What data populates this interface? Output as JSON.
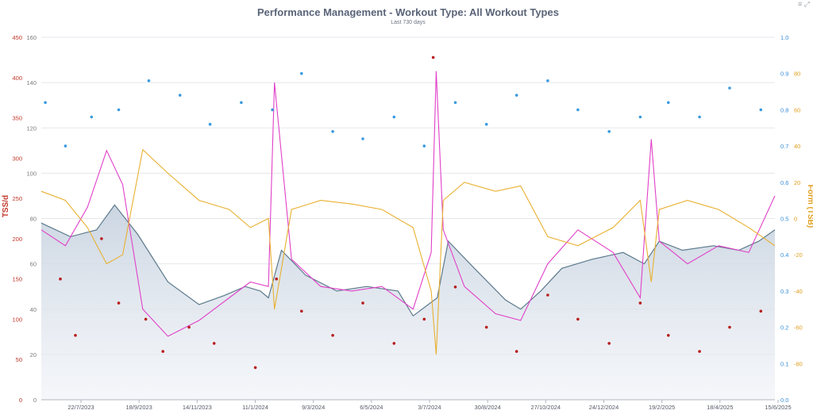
{
  "chart_data": {
    "type": "line",
    "title": "Performance Management - Workout Type: All Workout Types",
    "subtitle": "Last 730 days",
    "x_ticks": [
      "22/7/2023",
      "18/9/2023",
      "14/11/2023",
      "11/1/2024",
      "9/3/2024",
      "6/5/2024",
      "3/7/2024",
      "30/8/2024",
      "27/10/2024",
      "24/12/2024",
      "19/2/2025",
      "18/4/2025",
      "15/6/2025"
    ],
    "x_range": [
      "2023-06-16",
      "2025-06-15"
    ],
    "axes": {
      "tss": {
        "title": "TSS/d",
        "ticks": [
          "0",
          "50",
          "100",
          "150",
          "200",
          "250",
          "300",
          "350",
          "400",
          "450"
        ],
        "range": [
          0,
          450
        ],
        "position": "far-left"
      },
      "ctl": {
        "ticks": [
          "0",
          "20",
          "40",
          "60",
          "80",
          "100",
          "120",
          "140",
          "160"
        ],
        "range": [
          0,
          160
        ],
        "position": "left"
      },
      "intensity_factor": {
        "ticks": [
          "0.0",
          "0.1",
          "0.2",
          "0.3",
          "0.4",
          "0.5",
          "0.6",
          "0.7",
          "0.8",
          "0.9",
          "1.0"
        ],
        "range": [
          0,
          1
        ],
        "position": "right"
      },
      "tsb": {
        "title": "Form (TSB)",
        "ticks": [
          "-80",
          "-60",
          "-40",
          "-20",
          "0",
          "20",
          "40",
          "60",
          "80"
        ],
        "range": [
          -100,
          100
        ],
        "position": "far-right"
      }
    },
    "series": [
      {
        "key": "ctl",
        "chart": "area",
        "color": "#5d7a8c",
        "fill": "#d8e0ea",
        "x": [
          "2023-06-16",
          "2023-07-15",
          "2023-08-10",
          "2023-08-28",
          "2023-09-20",
          "2023-10-20",
          "2023-11-20",
          "2023-12-15",
          "2024-01-05",
          "2024-01-20",
          "2024-01-28",
          "2024-02-10",
          "2024-03-05",
          "2024-04-05",
          "2024-05-05",
          "2024-06-05",
          "2024-06-20",
          "2024-07-05",
          "2024-07-14",
          "2024-07-25",
          "2024-08-20",
          "2024-09-20",
          "2024-10-05",
          "2024-10-25",
          "2024-11-15",
          "2024-12-15",
          "2025-01-15",
          "2025-02-05",
          "2025-02-20",
          "2025-03-15",
          "2025-04-15",
          "2025-05-10",
          "2025-05-30",
          "2025-06-15"
        ],
        "y": [
          78,
          72,
          75,
          86,
          73,
          52,
          42,
          46,
          50,
          48,
          45,
          66,
          55,
          48,
          50,
          48,
          37,
          42,
          45,
          70,
          58,
          44,
          40,
          48,
          58,
          62,
          65,
          60,
          70,
          66,
          68,
          66,
          70,
          75
        ]
      },
      {
        "key": "atl",
        "chart": "line",
        "color": "#e040c8",
        "x": [
          "2023-06-16",
          "2023-07-10",
          "2023-08-01",
          "2023-08-20",
          "2023-09-05",
          "2023-09-25",
          "2023-10-20",
          "2023-11-20",
          "2023-12-20",
          "2024-01-10",
          "2024-01-28",
          "2024-02-03",
          "2024-02-20",
          "2024-03-20",
          "2024-04-20",
          "2024-05-20",
          "2024-06-20",
          "2024-07-08",
          "2024-07-13",
          "2024-07-20",
          "2024-08-10",
          "2024-09-10",
          "2024-10-05",
          "2024-11-01",
          "2024-12-01",
          "2025-01-05",
          "2025-02-01",
          "2025-02-12",
          "2025-02-20",
          "2025-03-20",
          "2025-04-20",
          "2025-05-20",
          "2025-06-15"
        ],
        "y": [
          75,
          68,
          85,
          110,
          95,
          40,
          28,
          35,
          45,
          52,
          50,
          140,
          62,
          50,
          48,
          50,
          40,
          65,
          145,
          75,
          50,
          38,
          35,
          60,
          75,
          65,
          45,
          115,
          70,
          60,
          68,
          65,
          90
        ]
      },
      {
        "key": "tsb",
        "chart": "line",
        "color": "#e8b030",
        "x": [
          "2023-06-16",
          "2023-07-10",
          "2023-08-01",
          "2023-08-20",
          "2023-09-05",
          "2023-09-25",
          "2023-10-20",
          "2023-11-20",
          "2023-12-20",
          "2024-01-10",
          "2024-01-28",
          "2024-02-03",
          "2024-02-20",
          "2024-03-20",
          "2024-04-20",
          "2024-05-20",
          "2024-06-20",
          "2024-07-08",
          "2024-07-13",
          "2024-07-20",
          "2024-08-10",
          "2024-09-10",
          "2024-10-05",
          "2024-11-01",
          "2024-12-01",
          "2025-01-05",
          "2025-02-01",
          "2025-02-12",
          "2025-02-20",
          "2025-03-20",
          "2025-04-20",
          "2025-05-20",
          "2025-06-15"
        ],
        "y": [
          15,
          10,
          -5,
          -25,
          -20,
          38,
          25,
          10,
          5,
          -5,
          0,
          -50,
          5,
          10,
          8,
          5,
          -5,
          -40,
          -75,
          10,
          20,
          15,
          18,
          -10,
          -15,
          -5,
          10,
          -35,
          5,
          10,
          5,
          -5,
          -15
        ]
      },
      {
        "key": "tss_daily",
        "chart": "scatter",
        "color": "#b81c1c",
        "axis": "tss",
        "x": [
          "2023-07-05",
          "2023-07-20",
          "2023-08-15",
          "2023-09-01",
          "2023-09-28",
          "2023-10-15",
          "2023-11-10",
          "2023-12-05",
          "2024-01-15",
          "2024-02-05",
          "2024-03-01",
          "2024-04-01",
          "2024-05-01",
          "2024-06-01",
          "2024-07-01",
          "2024-07-10",
          "2024-08-01",
          "2024-09-01",
          "2024-10-01",
          "2024-11-01",
          "2024-12-01",
          "2025-01-01",
          "2025-02-01",
          "2025-03-01",
          "2025-04-01",
          "2025-05-01",
          "2025-06-01"
        ],
        "y": [
          150,
          80,
          200,
          120,
          100,
          60,
          90,
          70,
          40,
          150,
          110,
          80,
          120,
          70,
          100,
          425,
          140,
          90,
          60,
          130,
          100,
          70,
          120,
          80,
          60,
          90,
          110
        ]
      },
      {
        "key": "intensity_factor",
        "chart": "scatter",
        "color": "#3a9ae0",
        "axis": "intensity_factor",
        "x": [
          "2023-06-20",
          "2023-07-10",
          "2023-08-05",
          "2023-09-01",
          "2023-10-01",
          "2023-11-01",
          "2023-12-01",
          "2024-01-01",
          "2024-02-01",
          "2024-03-01",
          "2024-04-01",
          "2024-05-01",
          "2024-06-01",
          "2024-07-01",
          "2024-08-01",
          "2024-09-01",
          "2024-10-01",
          "2024-11-01",
          "2024-12-01",
          "2025-01-01",
          "2025-02-01",
          "2025-03-01",
          "2025-04-01",
          "2025-05-01",
          "2025-06-01"
        ],
        "y": [
          0.82,
          0.7,
          0.78,
          0.8,
          0.88,
          0.84,
          0.76,
          0.82,
          0.8,
          0.9,
          0.74,
          0.72,
          0.78,
          0.7,
          0.82,
          0.76,
          0.84,
          0.88,
          0.8,
          0.74,
          0.78,
          0.82,
          0.78,
          0.86,
          0.8
        ]
      }
    ]
  },
  "icons": {
    "menu": "menu-icon",
    "expand": "expand-icon"
  }
}
